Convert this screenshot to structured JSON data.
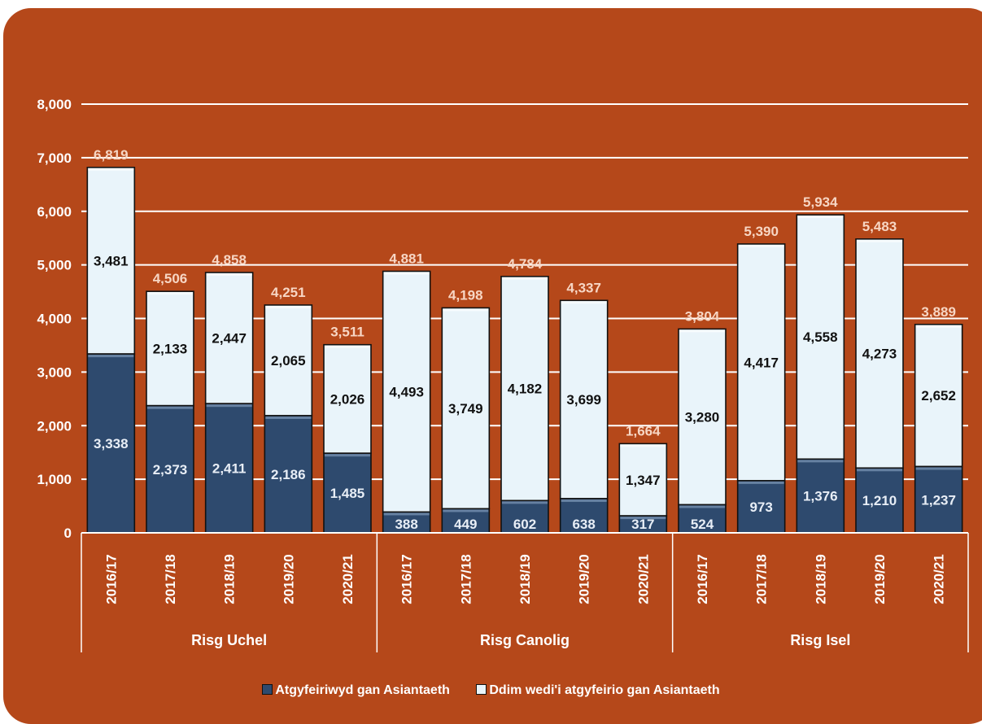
{
  "colors": {
    "background": "#b5481a",
    "series_bottom": "#2e4a6e",
    "series_top": "#e9f4fa",
    "grid": "#ffffff"
  },
  "chart_data": {
    "type": "bar",
    "stacked": true,
    "title": "",
    "xlabel": "",
    "ylabel": "",
    "ylim": [
      0,
      8000
    ],
    "yticks": [
      "0",
      "1,000",
      "2,000",
      "3,000",
      "4,000",
      "5,000",
      "6,000",
      "7,000",
      "8,000"
    ],
    "grid": true,
    "legend_position": "bottom",
    "groups": [
      {
        "label": "Risg Uchel",
        "categories": [
          "2016/17",
          "2017/18",
          "2018/19",
          "2019/20",
          "2020/21"
        ]
      },
      {
        "label": "Risg Canolig",
        "categories": [
          "2016/17",
          "2017/18",
          "2018/19",
          "2019/20",
          "2020/21"
        ]
      },
      {
        "label": "Risg Isel",
        "categories": [
          "2016/17",
          "2017/18",
          "2018/19",
          "2019/20",
          "2020/21"
        ]
      }
    ],
    "series": [
      {
        "name": "Atgyfeiriwyd gan Asiantaeth",
        "values": [
          3338,
          2373,
          2411,
          2186,
          1485,
          388,
          449,
          602,
          638,
          317,
          524,
          973,
          1376,
          1210,
          1237
        ],
        "labels": [
          "3,338",
          "2,373",
          "2,411",
          "2,186",
          "1,485",
          "388",
          "449",
          "602",
          "638",
          "317",
          "524",
          "973",
          "1,376",
          "1,210",
          "1,237"
        ]
      },
      {
        "name": "Ddim wedi'i atgyfeirio gan Asiantaeth",
        "values": [
          3481,
          2133,
          2447,
          2065,
          2026,
          4493,
          3749,
          4182,
          3699,
          1347,
          3280,
          4417,
          4558,
          4273,
          2652
        ],
        "labels": [
          "3,481",
          "2,133",
          "2,447",
          "2,065",
          "2,026",
          "4,493",
          "3,749",
          "4,182",
          "3,699",
          "1,347",
          "3,280",
          "4,417",
          "4,558",
          "4,273",
          "2,652"
        ]
      }
    ],
    "totals": [
      6819,
      4506,
      4858,
      4251,
      3511,
      4881,
      4198,
      4784,
      4337,
      1664,
      3804,
      5390,
      5934,
      5483,
      3889
    ],
    "total_labels": [
      "6,819",
      "4,506",
      "4,858",
      "4,251",
      "3,511",
      "4,881",
      "4,198",
      "4,784",
      "4,337",
      "1,664",
      "3,804",
      "5,390",
      "5,934",
      "5,483",
      "3,889"
    ]
  },
  "legend": {
    "items": [
      {
        "label": "Atgyfeiriwyd gan Asiantaeth",
        "icon": "square-swatch-dark-blue"
      },
      {
        "label": "Ddim wedi'i atgyfeirio gan Asiantaeth",
        "icon": "square-swatch-light-blue"
      }
    ]
  }
}
